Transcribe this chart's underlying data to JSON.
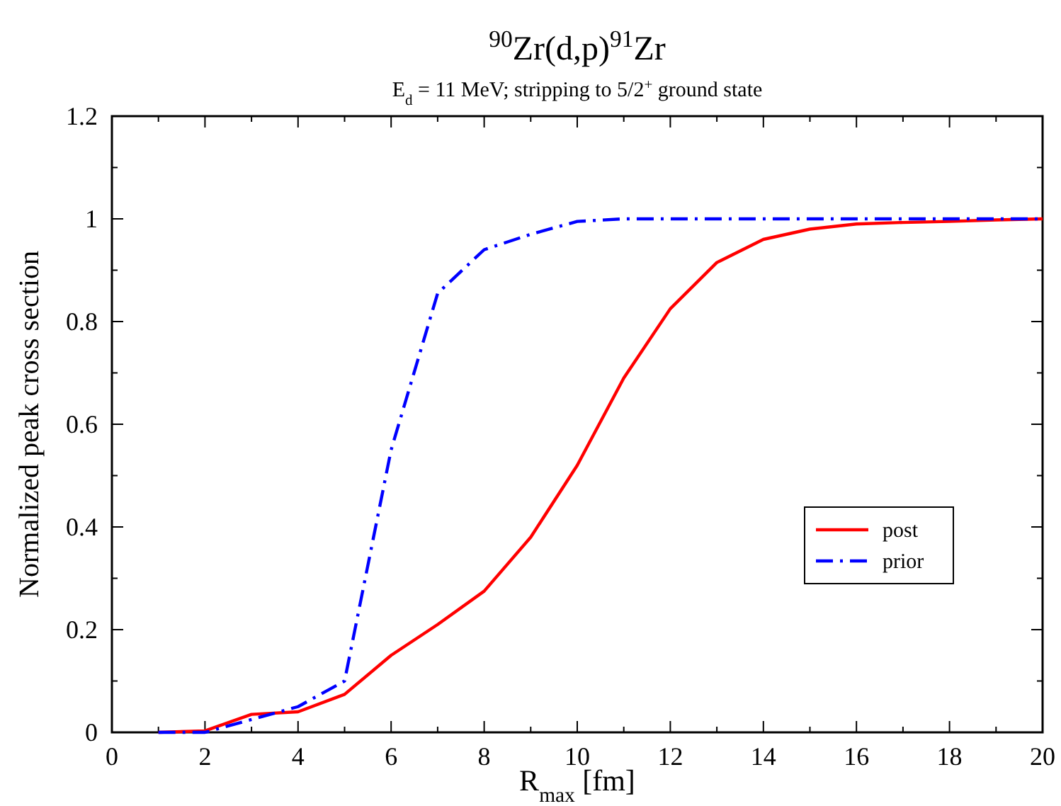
{
  "chart_data": {
    "type": "line",
    "title": "$^{90}$Zr(d,p)$^{91}$Zr",
    "subtitle": "E$_{d}$ = 11 MeV; stripping to 5/2$^{+}$ ground state",
    "xlabel": "R$_{max}$ [fm]",
    "ylabel": "Normalized peak cross section",
    "xlim": [
      0,
      20
    ],
    "ylim": [
      0,
      1.2
    ],
    "xticks": [
      0,
      {
        "value": 1,
        "label": null
      },
      2,
      {
        "value": 3,
        "label": null
      },
      4,
      {
        "value": 5,
        "label": null
      },
      6,
      {
        "value": 7,
        "label": null
      },
      8,
      {
        "value": 9,
        "label": null
      },
      10,
      {
        "value": 11,
        "label": null
      },
      12,
      {
        "value": 13,
        "label": null
      },
      14,
      {
        "value": 15,
        "label": null
      },
      16,
      {
        "value": 17,
        "label": null
      },
      18,
      {
        "value": 19,
        "label": null
      },
      20
    ],
    "yticks": [
      0,
      {
        "value": 0.1,
        "label": null
      },
      0.2,
      {
        "value": 0.3,
        "label": null
      },
      0.4,
      {
        "value": 0.5,
        "label": null
      },
      0.6,
      {
        "value": 0.7,
        "label": null
      },
      0.8,
      {
        "value": 0.9,
        "label": null
      },
      1,
      {
        "value": 1.1,
        "label": null
      },
      1.2
    ],
    "x": [
      1,
      2,
      3,
      4,
      5,
      6,
      7,
      8,
      9,
      10,
      11,
      12,
      13,
      14,
      15,
      16,
      17,
      18,
      19,
      20
    ],
    "series": [
      {
        "name": "post",
        "color": "#ff0000",
        "line_style": "solid",
        "values": [
          0,
          0.003,
          0.035,
          0.04,
          0.074,
          0.15,
          0.21,
          0.275,
          0.38,
          0.52,
          0.69,
          0.825,
          0.915,
          0.96,
          0.98,
          0.99,
          0.993,
          0.995,
          0.998,
          1.0
        ]
      },
      {
        "name": "prior",
        "color": "#0000ff",
        "line_style": "dashdot",
        "values": [
          0,
          0,
          0.025,
          0.05,
          0.1,
          0.55,
          0.855,
          0.94,
          0.97,
          0.995,
          1.0,
          1.0,
          1.0,
          1.0,
          1.0,
          1.0,
          1.0,
          1.0,
          1.0,
          1.0
        ]
      }
    ],
    "legend": "bottom right",
    "grid": false,
    "marker": "none"
  }
}
